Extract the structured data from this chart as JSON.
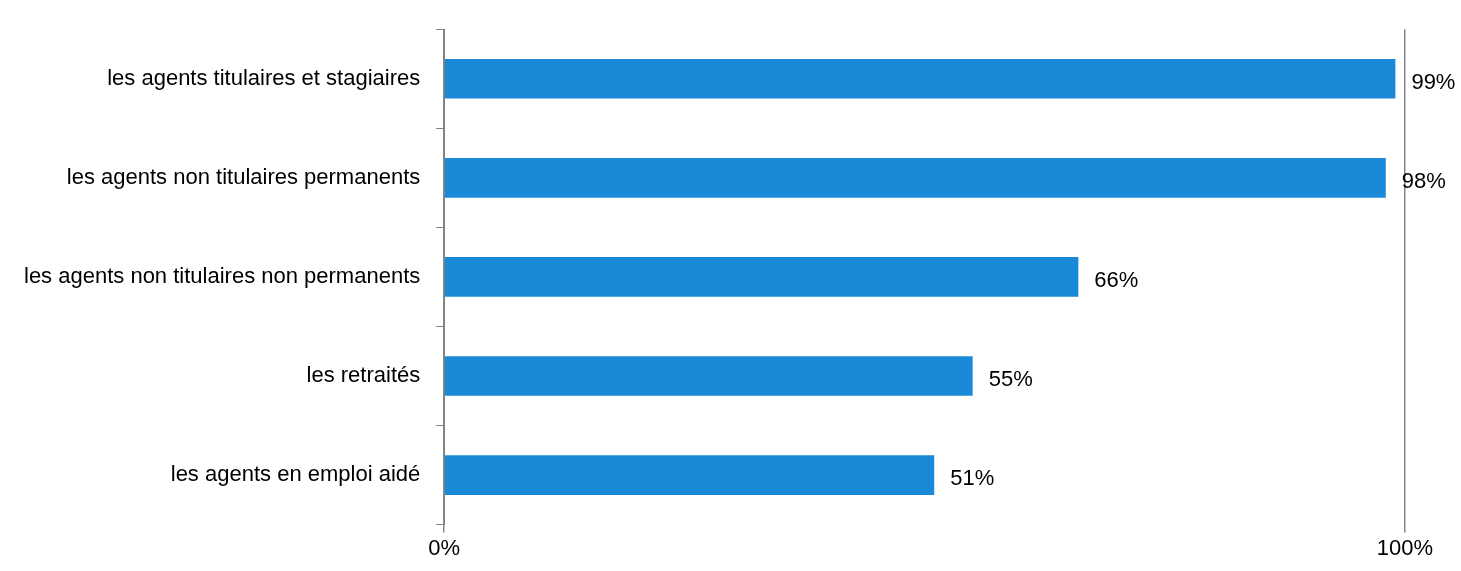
{
  "chart_data": {
    "type": "bar",
    "orientation": "horizontal",
    "categories": [
      "les agents titulaires et stagiaires",
      "les agents non titulaires permanents",
      "les agents non titulaires non permanents",
      "les retraités",
      "les agents en emploi aidé"
    ],
    "values": [
      99,
      98,
      66,
      55,
      51
    ],
    "value_labels": [
      "99%",
      "98%",
      "66%",
      "55%",
      "51%"
    ],
    "color": "#1a8ad8",
    "xlim": [
      0,
      100
    ],
    "xticks": [
      {
        "value": 0,
        "label": "0%"
      },
      {
        "value": 100,
        "label": "100%"
      }
    ],
    "grid": "x"
  }
}
